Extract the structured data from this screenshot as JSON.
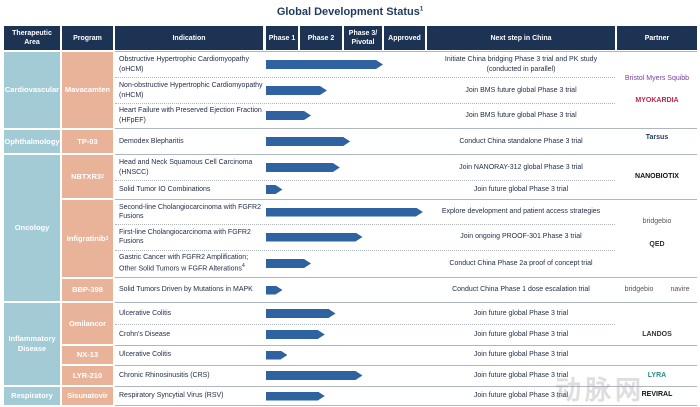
{
  "title": "Global Development Status",
  "title_footnote": "1",
  "headers": [
    "Therapeutic Area",
    "Program",
    "Indication",
    "Phase 1",
    "Phase 2",
    "Phase 3/ Pivotal",
    "Approved",
    "Next step in China",
    "Partner"
  ],
  "areas": [
    {
      "label": "Cardiovascular"
    },
    {
      "label": "Ophthalmology"
    },
    {
      "label": "Oncology"
    },
    {
      "label": "Inflammatory Disease"
    },
    {
      "label": "Respiratory"
    }
  ],
  "programs": [
    {
      "label": "Mavacamten"
    },
    {
      "label": "TP-03"
    },
    {
      "label": "NBTXR3",
      "sup": "2"
    },
    {
      "label": "Infigratinib",
      "sup": "3"
    },
    {
      "label": "BBP-398"
    },
    {
      "label": "Omilancor"
    },
    {
      "label": "NX-13"
    },
    {
      "label": "LYR-210"
    },
    {
      "label": "Sisunatovir"
    }
  ],
  "rows": [
    {
      "indication": "Obstructive Hypertrophic Cardiomyopathy (oHCM)",
      "progress_phases": 3.0,
      "next": "Initiate China bridging Phase 3 trial and PK study (conducted in parallel)"
    },
    {
      "indication": "Non-obstructive Hypertrophic Cardiomyopathy (nHCM)",
      "progress_phases": 1.65,
      "next": "Join BMS future global Phase 3 trial"
    },
    {
      "indication": "Heart Failure with Preserved Ejection Fraction (HFpEF)",
      "progress_phases": 1.28,
      "next": "Join BMS future global Phase 3 trial"
    },
    {
      "indication": "Demodex Blepharitis",
      "progress_phases": 2.2,
      "next": "Conduct China standalone Phase 3 trial"
    },
    {
      "indication": "Head and Neck Squamous Cell Carcinoma (HNSCC)",
      "progress_phases": 1.95,
      "next": "Join NANORAY-312 global Phase 3 trial"
    },
    {
      "indication": "Solid Tumor IO Combinations",
      "progress_phases": 0.5,
      "next": "Join future global Phase 3 trial"
    },
    {
      "indication": "Second-line Cholangiocarcinoma with FGFR2 Fusions",
      "progress_phases": 3.95,
      "next": "Explore development and patient access strategies"
    },
    {
      "indication": "First-line Cholangiocarcinoma with FGFR2 Fusions",
      "progress_phases": 2.5,
      "next": "Join ongoing PROOF-301 Phase 3  trial"
    },
    {
      "indication": "Gastric Cancer with FGFR2 Amplification; Other Solid Tumors w FGFR Alterations",
      "sup": "4",
      "progress_phases": 1.28,
      "next": "Conduct China Phase 2a proof of concept trial"
    },
    {
      "indication": "Solid Tumors Driven by Mutations in MAPK",
      "progress_phases": 0.5,
      "next": "Conduct China Phase 1 dose escalation trial"
    },
    {
      "indication": "Ulcerative Colitis",
      "progress_phases": 1.85,
      "next": "Join future global Phase 3 trial"
    },
    {
      "indication": "Crohn's Disease",
      "progress_phases": 1.6,
      "next": "Join future global Phase 3 trial"
    },
    {
      "indication": "Ulcerative Colitis",
      "progress_phases": 0.65,
      "next": "Join future global Phase 3 trial"
    },
    {
      "indication": "Chronic Rhinosinusitis (CRS)",
      "progress_phases": 2.5,
      "next": "Join future global Phase 3 trial"
    },
    {
      "indication": "Respiratory Syncytial Virus (RSV)",
      "progress_phases": 1.6,
      "next": "Join future global Phase 3 trial"
    }
  ],
  "partners": [
    {
      "label": "Bristol Myers Squibb",
      "color": "#7b3fa0"
    },
    {
      "label": "MYOKARDIA",
      "color": "#c0284a"
    },
    {
      "label": "Tarsus",
      "color": "#1f3a5f"
    },
    {
      "label": "NANOBIOTIX",
      "color": "#111111"
    },
    {
      "label": "bridgebio",
      "color": "#555555"
    },
    {
      "label": "QED",
      "color": "#333333"
    },
    {
      "label": "bridgebio",
      "color": "#555555"
    },
    {
      "label": "navire",
      "color": "#555555"
    },
    {
      "label": "LANDOS",
      "color": "#333333"
    },
    {
      "label": "LYRA",
      "color": "#2a8a8a"
    },
    {
      "label": "REVIRAL",
      "color": "#111111"
    }
  ],
  "watermark": "动脉网",
  "colors": {
    "header": "#1c3353",
    "area": "#a3cbd6",
    "program": "#e9b39a",
    "bar": "#2e62a0"
  }
}
